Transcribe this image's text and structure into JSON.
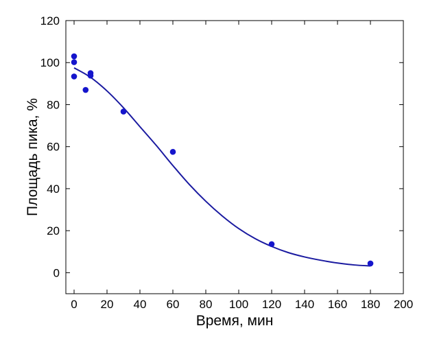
{
  "chart_data": {
    "type": "scatter",
    "title": "",
    "xlabel": "Время, мин",
    "ylabel": "Площадь пика, %",
    "xlim": [
      -5,
      200
    ],
    "ylim": [
      -10,
      120
    ],
    "xticks": [
      0,
      20,
      40,
      60,
      80,
      100,
      120,
      140,
      160,
      180,
      200
    ],
    "yticks": [
      0,
      20,
      40,
      60,
      80,
      100,
      120
    ],
    "grid": false,
    "legend": "none",
    "series": [
      {
        "kind": "points",
        "color": "#1515cc",
        "points": [
          {
            "x": 0,
            "y": 103.0
          },
          {
            "x": 0,
            "y": 100.2
          },
          {
            "x": 0,
            "y": 93.4
          },
          {
            "x": 7,
            "y": 87.0
          },
          {
            "x": 10,
            "y": 95.0
          },
          {
            "x": 10,
            "y": 93.8
          },
          {
            "x": 30,
            "y": 76.7
          },
          {
            "x": 60,
            "y": 57.5
          },
          {
            "x": 120,
            "y": 13.6
          },
          {
            "x": 180,
            "y": 4.4
          }
        ]
      },
      {
        "kind": "fit-line",
        "color": "#1a1aa0",
        "points": [
          {
            "x": 0,
            "y": 97.5
          },
          {
            "x": 10,
            "y": 93.0
          },
          {
            "x": 20,
            "y": 86.5
          },
          {
            "x": 30,
            "y": 78.5
          },
          {
            "x": 40,
            "y": 69.5
          },
          {
            "x": 50,
            "y": 60.5
          },
          {
            "x": 60,
            "y": 51.0
          },
          {
            "x": 70,
            "y": 42.0
          },
          {
            "x": 80,
            "y": 34.0
          },
          {
            "x": 90,
            "y": 27.0
          },
          {
            "x": 100,
            "y": 21.0
          },
          {
            "x": 110,
            "y": 16.2
          },
          {
            "x": 120,
            "y": 12.5
          },
          {
            "x": 130,
            "y": 9.6
          },
          {
            "x": 140,
            "y": 7.5
          },
          {
            "x": 150,
            "y": 5.9
          },
          {
            "x": 160,
            "y": 4.6
          },
          {
            "x": 170,
            "y": 3.7
          },
          {
            "x": 180,
            "y": 3.2
          }
        ]
      }
    ]
  }
}
